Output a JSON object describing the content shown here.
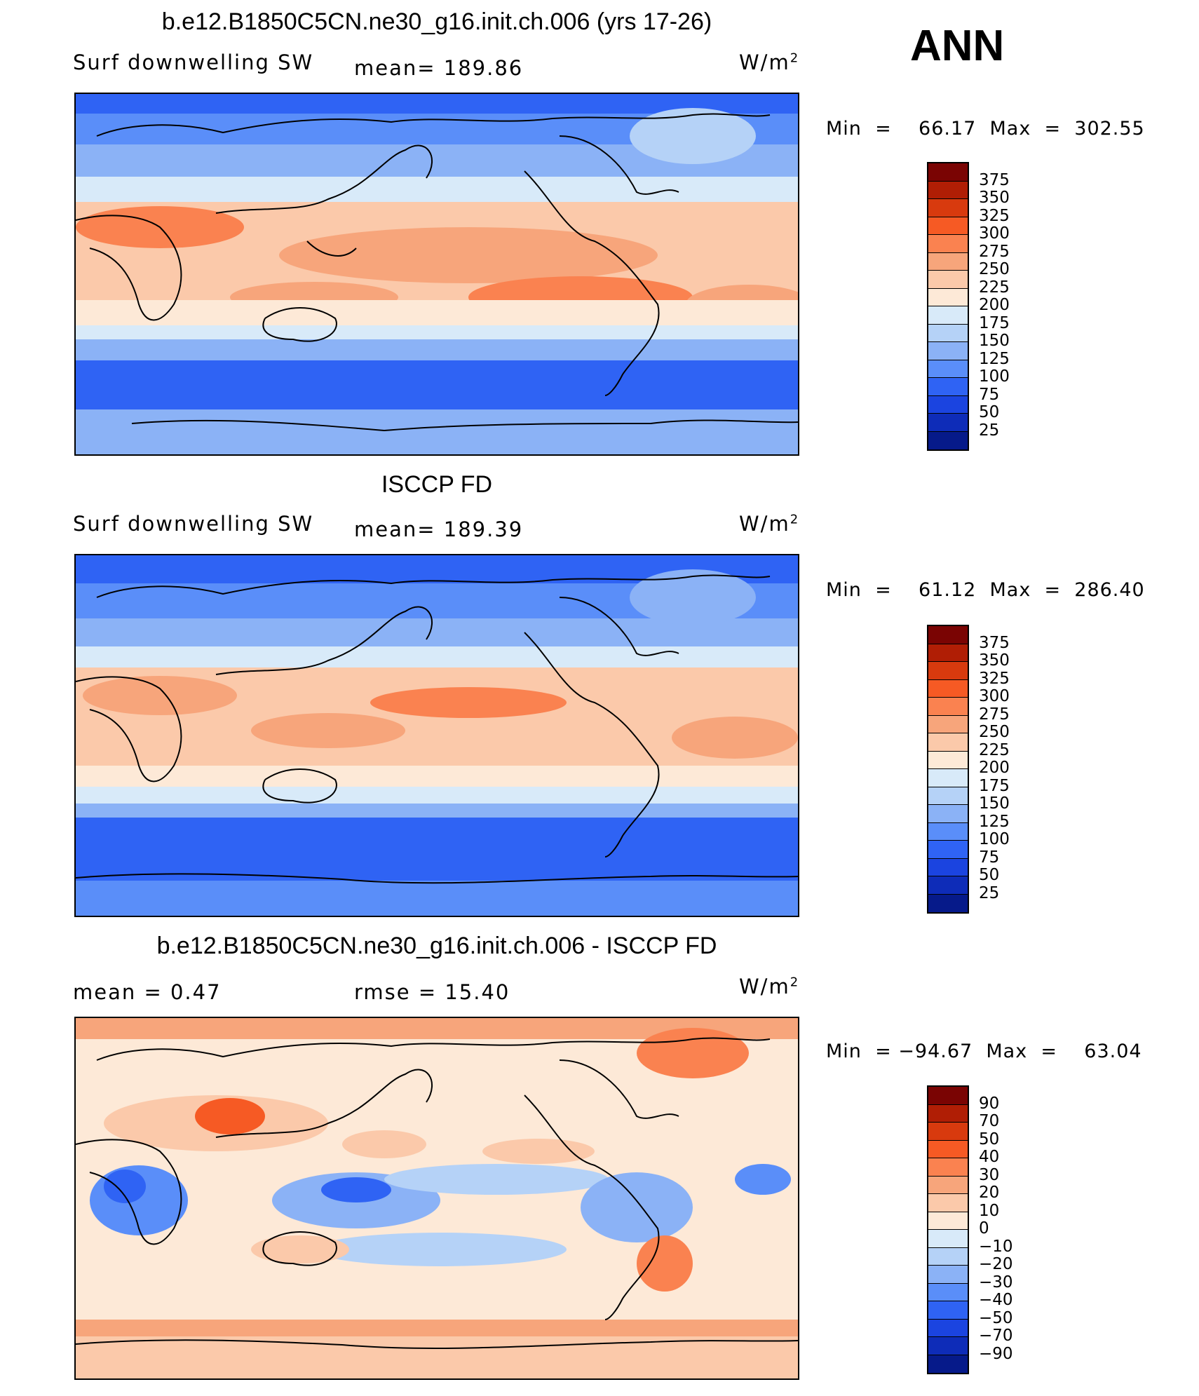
{
  "season": "ANN",
  "units_base": "W/m",
  "units_sup": "2",
  "panels": [
    {
      "title": "b.e12.B1850C5CN.ne30_g16.init.ch.006 (yrs 17-26)",
      "left_label": "Surf  downwelling  SW",
      "center_label": "mean=  189.86",
      "minmax": "Min  =    66.17  Max  =  302.55",
      "scale": "abs"
    },
    {
      "title": "ISCCP FD",
      "left_label": "Surf  downwelling  SW",
      "center_label": "mean=  189.39",
      "minmax": "Min  =    61.12  Max  =  286.40",
      "scale": "abs"
    },
    {
      "title": "b.e12.B1850C5CN.ne30_g16.init.ch.006 - ISCCP FD",
      "left_label": "mean  =     0.47",
      "center_label": "rmse  =    15.40",
      "minmax": "Min  = −94.67  Max  =    63.04",
      "scale": "diff"
    }
  ],
  "colorbars": {
    "abs": {
      "ticks": [
        "375",
        "350",
        "325",
        "300",
        "275",
        "250",
        "225",
        "200",
        "175",
        "150",
        "125",
        "100",
        "75",
        "50",
        "25"
      ],
      "colors": [
        "#7a0403",
        "#b01e05",
        "#d83a0e",
        "#f65a24",
        "#fa8250",
        "#f7a57b",
        "#fbc9aa",
        "#fde9d7",
        "#d8eaf9",
        "#b5d2f7",
        "#8bb2f6",
        "#5a8ef9",
        "#2f63f4",
        "#1b44e0",
        "#0e2cb8",
        "#061a8a"
      ]
    },
    "diff": {
      "ticks": [
        "90",
        "70",
        "50",
        "40",
        "30",
        "20",
        "10",
        "0",
        "−10",
        "−20",
        "−30",
        "−40",
        "−50",
        "−70",
        "−90"
      ],
      "colors": [
        "#7a0403",
        "#b01e05",
        "#d83a0e",
        "#f65a24",
        "#fa8250",
        "#f7a57b",
        "#fbc9aa",
        "#fde9d7",
        "#d8eaf9",
        "#b5d2f7",
        "#8bb2f6",
        "#5a8ef9",
        "#2f63f4",
        "#1b44e0",
        "#0e2cb8",
        "#061a8a"
      ]
    }
  }
}
